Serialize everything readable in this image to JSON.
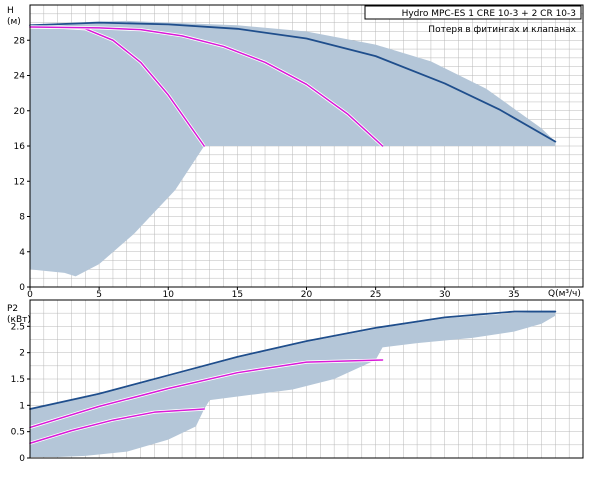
{
  "colors": {
    "background": "#ffffff",
    "grid": "#b8b8b8",
    "frame": "#000000",
    "operating_area": "#b4c6d8",
    "max_curve": "#1f4e8c",
    "curve_1": "#d81ad8",
    "curve_2": "#d81ad8"
  },
  "chart_data": [
    {
      "type": "area",
      "title": "",
      "legend": {
        "title": "Hydro MPC-ES 1 CRE 10-3  +  2 CR 10-3",
        "subtitle": "Потеря в фитингах и клапанах",
        "placement": "top-right"
      },
      "xlabel": "Q(м³/ч)",
      "ylabel_line1": "H",
      "ylabel_line2": "(м)",
      "xlim": [
        0,
        40
      ],
      "ylim": [
        0,
        32
      ],
      "xticks": [
        0,
        5,
        10,
        15,
        20,
        25,
        30,
        35
      ],
      "yticks": [
        0,
        4,
        8,
        12,
        16,
        20,
        24,
        28
      ],
      "grid": true,
      "operating_area": {
        "x": [
          0,
          4,
          8,
          12.6,
          25.5,
          38,
          38,
          37,
          33,
          29,
          25,
          20,
          15,
          10,
          7,
          4.5,
          2.5,
          0
        ],
        "y": [
          29.6,
          29.8,
          29.3,
          16.0,
          16.0,
          16.0,
          16.5,
          18.0,
          22.5,
          25.6,
          27.5,
          29.0,
          29.7,
          30.0,
          30.2,
          30.1,
          29.8,
          29.6
        ],
        "lower_x": [
          0,
          2.5,
          3.3,
          5,
          7.5,
          10.5,
          12.6
        ],
        "lower_y": [
          2.0,
          1.6,
          1.2,
          2.6,
          6.0,
          11.0,
          16.0
        ]
      },
      "series": [
        {
          "style": "max",
          "x": [
            0,
            5,
            10,
            15,
            20,
            25,
            30,
            34,
            38
          ],
          "y": [
            29.7,
            30.0,
            29.8,
            29.3,
            28.2,
            26.2,
            23.1,
            20.1,
            16.5
          ]
        },
        {
          "style": "curve_1",
          "x": [
            0,
            2,
            4,
            6,
            8,
            10,
            12.6
          ],
          "y": [
            29.5,
            29.5,
            29.3,
            28.0,
            25.5,
            21.8,
            16.0
          ]
        },
        {
          "style": "curve_2",
          "x": [
            0,
            5,
            8,
            11,
            14,
            17,
            20,
            23,
            25.5
          ],
          "y": [
            29.5,
            29.4,
            29.2,
            28.5,
            27.3,
            25.5,
            23.0,
            19.6,
            16.0
          ]
        }
      ]
    },
    {
      "type": "area",
      "title": "",
      "xlabel": "",
      "ylabel_line1": "P2",
      "ylabel_line2": "(кВт)",
      "xlim": [
        0,
        40
      ],
      "ylim": [
        0,
        3
      ],
      "xticks": [],
      "yticks": [
        0,
        0.5,
        1,
        1.5,
        2,
        2.5
      ],
      "ytick_labels": [
        "0",
        "0.5",
        "1",
        "1.5",
        "2",
        "2.5"
      ],
      "grid": true,
      "operating_area": {
        "x": [
          0,
          5,
          10,
          15,
          20,
          25,
          30,
          35,
          38,
          38,
          37,
          35,
          32,
          28,
          25.5,
          25,
          22,
          19,
          16,
          13,
          12.6,
          12,
          10,
          7,
          4,
          2,
          0
        ],
        "y": [
          0.93,
          1.2,
          1.55,
          1.9,
          2.2,
          2.45,
          2.65,
          2.75,
          2.78,
          2.7,
          2.55,
          2.4,
          2.28,
          2.18,
          2.1,
          1.86,
          1.5,
          1.3,
          1.2,
          1.1,
          0.93,
          0.6,
          0.35,
          0.12,
          0.04,
          0.02,
          0.02
        ]
      },
      "series": [
        {
          "style": "max",
          "x": [
            0,
            5,
            10,
            15,
            20,
            25,
            30,
            35,
            38
          ],
          "y": [
            0.93,
            1.22,
            1.57,
            1.92,
            2.22,
            2.47,
            2.67,
            2.78,
            2.78
          ]
        },
        {
          "style": "curve_1",
          "x": [
            0,
            3,
            6,
            9,
            12.6
          ],
          "y": [
            0.28,
            0.52,
            0.72,
            0.87,
            0.93
          ]
        },
        {
          "style": "curve_2",
          "x": [
            0,
            5,
            10,
            15,
            20,
            25.5
          ],
          "y": [
            0.58,
            0.98,
            1.32,
            1.62,
            1.82,
            1.86
          ]
        }
      ]
    }
  ]
}
